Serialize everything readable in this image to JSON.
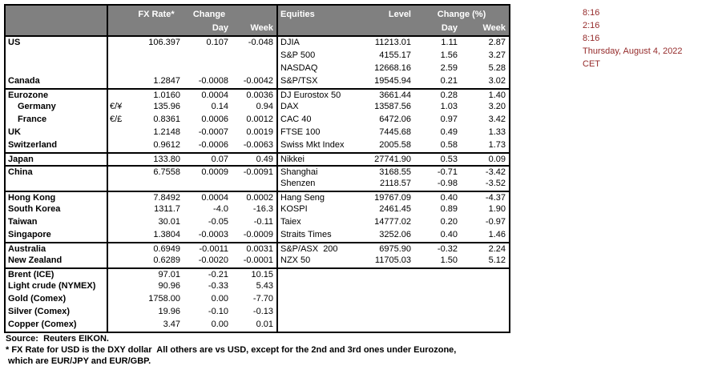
{
  "colors": {
    "header_bg": "#808080",
    "header_text": "#ffffff",
    "border": "#000000",
    "body_text": "#000000",
    "times_text": "#952b2b"
  },
  "table": {
    "fx_header": {
      "rate": "FX Rate*",
      "change": "Change",
      "day": "Day",
      "week": "Week"
    },
    "eq_header": {
      "name": "Equities",
      "level": "Level",
      "change": "Change (%)",
      "day": "Day",
      "week": "Week"
    },
    "rows": [
      {
        "fx_name": "US",
        "fx_symbol": "",
        "fx_rate": "106.397",
        "fx_day": "0.107",
        "fx_week": "-0.048",
        "eq_name": "DJIA",
        "eq_level": "11213.01",
        "eq_day": "1.11",
        "eq_week": "2.87",
        "indent": false,
        "group_start": false
      },
      {
        "fx_name": "",
        "fx_symbol": "",
        "fx_rate": "",
        "fx_day": "",
        "fx_week": "",
        "eq_name": "S&P 500",
        "eq_level": "4155.17",
        "eq_day": "1.56",
        "eq_week": "3.27",
        "indent": false,
        "group_start": false
      },
      {
        "fx_name": "",
        "fx_symbol": "",
        "fx_rate": "",
        "fx_day": "",
        "fx_week": "",
        "eq_name": "NASDAQ",
        "eq_level": "12668.16",
        "eq_day": "2.59",
        "eq_week": "5.28",
        "indent": false,
        "group_start": false
      },
      {
        "fx_name": "Canada",
        "fx_symbol": "",
        "fx_rate": "1.2847",
        "fx_day": "-0.0008",
        "fx_week": "-0.0042",
        "eq_name": "S&P/TSX",
        "eq_level": "19545.94",
        "eq_day": "0.21",
        "eq_week": "3.02",
        "indent": false,
        "group_start": false
      },
      {
        "fx_name": "Eurozone",
        "fx_symbol": "",
        "fx_rate": "1.0160",
        "fx_day": "0.0004",
        "fx_week": "0.0036",
        "eq_name": "DJ Eurostox 50",
        "eq_level": "3661.44",
        "eq_day": "0.28",
        "eq_week": "1.40",
        "indent": false,
        "group_start": true
      },
      {
        "fx_name": "Germany",
        "fx_symbol": "€/¥",
        "fx_rate": "135.96",
        "fx_day": "0.14",
        "fx_week": "0.94",
        "eq_name": "DAX",
        "eq_level": "13587.56",
        "eq_day": "1.03",
        "eq_week": "3.20",
        "indent": true,
        "group_start": false
      },
      {
        "fx_name": "France",
        "fx_symbol": "€/£",
        "fx_rate": "0.8361",
        "fx_day": "0.0006",
        "fx_week": "0.0012",
        "eq_name": "CAC 40",
        "eq_level": "6472.06",
        "eq_day": "0.97",
        "eq_week": "3.42",
        "indent": true,
        "group_start": false
      },
      {
        "fx_name": "UK",
        "fx_symbol": "",
        "fx_rate": "1.2148",
        "fx_day": "-0.0007",
        "fx_week": "0.0019",
        "eq_name": "FTSE 100",
        "eq_level": "7445.68",
        "eq_day": "0.49",
        "eq_week": "1.33",
        "indent": false,
        "group_start": false
      },
      {
        "fx_name": "Switzerland",
        "fx_symbol": "",
        "fx_rate": "0.9612",
        "fx_day": "-0.0006",
        "fx_week": "-0.0063",
        "eq_name": "Swiss Mkt Index",
        "eq_level": "2005.58",
        "eq_day": "0.58",
        "eq_week": "1.73",
        "indent": false,
        "group_start": false
      },
      {
        "fx_name": "Japan",
        "fx_symbol": "",
        "fx_rate": "133.80",
        "fx_day": "0.07",
        "fx_week": "0.49",
        "eq_name": "Nikkei",
        "eq_level": "27741.90",
        "eq_day": "0.53",
        "eq_week": "0.09",
        "indent": false,
        "group_start": true
      },
      {
        "fx_name": "China",
        "fx_symbol": "",
        "fx_rate": "6.7558",
        "fx_day": "0.0009",
        "fx_week": "-0.0091",
        "eq_name": "Shanghai",
        "eq_level": "3168.55",
        "eq_day": "-0.71",
        "eq_week": "-3.42",
        "indent": false,
        "group_start": true
      },
      {
        "fx_name": "",
        "fx_symbol": "",
        "fx_rate": "",
        "fx_day": "",
        "fx_week": "",
        "eq_name": "Shenzen",
        "eq_level": "2118.57",
        "eq_day": "-0.98",
        "eq_week": "-3.52",
        "indent": false,
        "group_start": false
      },
      {
        "fx_name": "Hong Kong",
        "fx_symbol": "",
        "fx_rate": "7.8492",
        "fx_day": "0.0004",
        "fx_week": "0.0002",
        "eq_name": "Hang Seng",
        "eq_level": "19767.09",
        "eq_day": "0.40",
        "eq_week": "-4.37",
        "indent": false,
        "group_start": true
      },
      {
        "fx_name": "South Korea",
        "fx_symbol": "",
        "fx_rate": "1311.7",
        "fx_day": "-4.0",
        "fx_week": "-16.3",
        "eq_name": "KOSPI",
        "eq_level": "2461.45",
        "eq_day": "0.89",
        "eq_week": "1.90",
        "indent": false,
        "group_start": false
      },
      {
        "fx_name": "Taiwan",
        "fx_symbol": "",
        "fx_rate": "30.01",
        "fx_day": "-0.05",
        "fx_week": "-0.11",
        "eq_name": "Taiex",
        "eq_level": "14777.02",
        "eq_day": "0.20",
        "eq_week": "-0.97",
        "indent": false,
        "group_start": false
      },
      {
        "fx_name": "Singapore",
        "fx_symbol": "",
        "fx_rate": "1.3804",
        "fx_day": "-0.0003",
        "fx_week": "-0.0009",
        "eq_name": "Straits Times",
        "eq_level": "3252.06",
        "eq_day": "0.40",
        "eq_week": "1.46",
        "indent": false,
        "group_start": false
      },
      {
        "fx_name": "Australia",
        "fx_symbol": "",
        "fx_rate": "0.6949",
        "fx_day": "-0.0011",
        "fx_week": "0.0031",
        "eq_name": "S&P/ASX  200",
        "eq_level": "6975.90",
        "eq_day": "-0.32",
        "eq_week": "2.24",
        "indent": false,
        "group_start": true
      },
      {
        "fx_name": "New Zealand",
        "fx_symbol": "",
        "fx_rate": "0.6289",
        "fx_day": "-0.0020",
        "fx_week": "-0.0001",
        "eq_name": "NZX 50",
        "eq_level": "11705.03",
        "eq_day": "1.50",
        "eq_week": "5.12",
        "indent": false,
        "group_start": false
      },
      {
        "fx_name": "Brent (ICE)",
        "fx_symbol": "",
        "fx_rate": "97.01",
        "fx_day": "-0.21",
        "fx_week": "10.15",
        "eq_name": "",
        "eq_level": "",
        "eq_day": "",
        "eq_week": "",
        "indent": false,
        "group_start": true
      },
      {
        "fx_name": "Light crude (NYMEX)",
        "fx_symbol": "",
        "fx_rate": "90.96",
        "fx_day": "-0.33",
        "fx_week": "5.43",
        "eq_name": "",
        "eq_level": "",
        "eq_day": "",
        "eq_week": "",
        "indent": false,
        "group_start": false
      },
      {
        "fx_name": "Gold (Comex)",
        "fx_symbol": "",
        "fx_rate": "1758.00",
        "fx_day": "0.00",
        "fx_week": "-7.70",
        "eq_name": "",
        "eq_level": "",
        "eq_day": "",
        "eq_week": "",
        "indent": false,
        "group_start": false
      },
      {
        "fx_name": "Silver (Comex)",
        "fx_symbol": "",
        "fx_rate": "19.96",
        "fx_day": "-0.10",
        "fx_week": "-0.13",
        "eq_name": "",
        "eq_level": "",
        "eq_day": "",
        "eq_week": "",
        "indent": false,
        "group_start": false
      },
      {
        "fx_name": "Copper (Comex)",
        "fx_symbol": "",
        "fx_rate": "3.47",
        "fx_day": "0.00",
        "fx_week": "0.01",
        "eq_name": "",
        "eq_level": "",
        "eq_day": "",
        "eq_week": "",
        "indent": false,
        "group_start": false
      }
    ]
  },
  "times": {
    "lines": [
      "8:16",
      "2:16",
      "8:16",
      "Thursday, August 4, 2022",
      "CET"
    ]
  },
  "footnotes": {
    "source": "Source:  Reuters EIKON.",
    "line1": "* FX Rate for USD is the DXY dollar  All others are vs USD, except for the 2nd and 3rd ones under Eurozone,",
    "line2": " which are EUR/JPY and EUR/GBP."
  }
}
